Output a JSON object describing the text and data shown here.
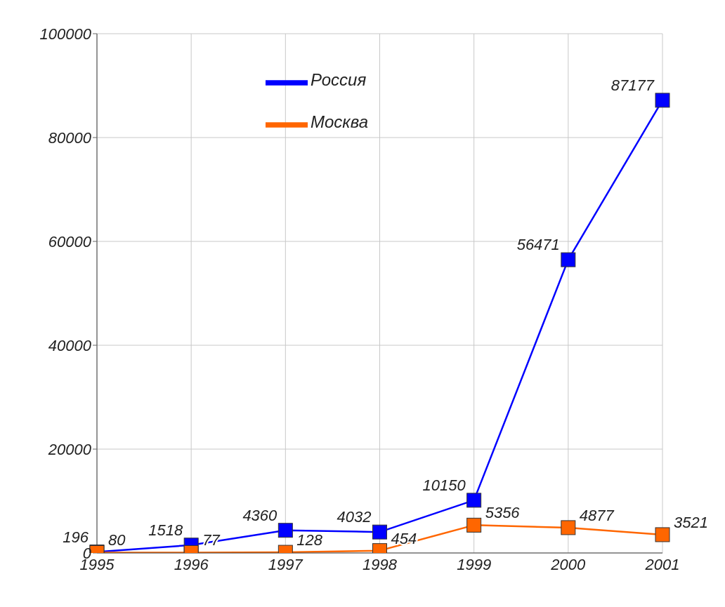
{
  "chart_data": {
    "type": "line",
    "categories": [
      "1995",
      "1996",
      "1997",
      "1998",
      "1999",
      "2000",
      "2001"
    ],
    "series": [
      {
        "name": "Россия",
        "color": "#0000ff",
        "values": [
          196,
          1518,
          4360,
          4032,
          10150,
          56471,
          87177
        ]
      },
      {
        "name": "Москва",
        "color": "#ff6600",
        "values": [
          80,
          77,
          128,
          454,
          5356,
          4877,
          3521
        ]
      }
    ],
    "ylim": [
      0,
      100000
    ],
    "yticks": [
      0,
      20000,
      40000,
      60000,
      80000,
      100000
    ],
    "grid": true,
    "legend": "top left",
    "marker": "square",
    "line_style": "solid",
    "data_labels": true
  }
}
